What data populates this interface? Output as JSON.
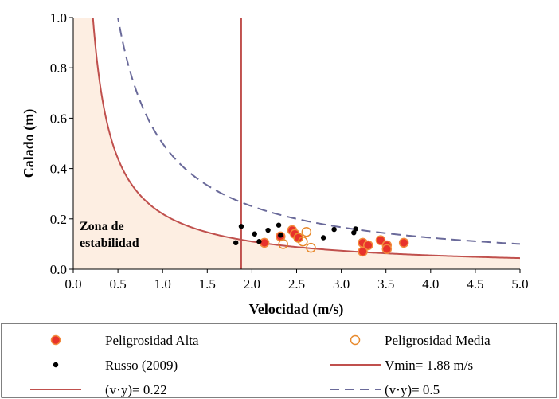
{
  "chart_data": {
    "type": "scatter",
    "xlabel": "Velocidad  (m/s)",
    "ylabel": "Calado (m)",
    "xlim": [
      0.0,
      5.0
    ],
    "ylim": [
      0.0,
      1.0
    ],
    "xticks": [
      "0.0",
      "0.5",
      "1.0",
      "1.5",
      "2.0",
      "2.5",
      "3.0",
      "3.5",
      "4.0",
      "4.5",
      "5.0"
    ],
    "yticks": [
      "0.0",
      "0.2",
      "0.4",
      "0.6",
      "0.8",
      "1.0"
    ],
    "xtick_values": [
      0,
      0.5,
      1,
      1.5,
      2,
      2.5,
      3,
      3.5,
      4,
      4.5,
      5
    ],
    "ytick_values": [
      0,
      0.2,
      0.4,
      0.6,
      0.8,
      1.0
    ],
    "grid": false,
    "legend_position": "bottom",
    "annotation": [
      "Zona de",
      "estabilidad"
    ],
    "colors": {
      "curve_022": "#c0504d",
      "curve_05": "#6a6a9a",
      "vmin": "#c0504d",
      "alta": "#e8322b",
      "alta_edge": "#f28a3c",
      "media": "#e8892b",
      "russo": "#000000",
      "zone_fill": "#fdeee2"
    },
    "curves": [
      {
        "name": "(v·y)= 0.22",
        "product": 0.22,
        "style": "solid"
      },
      {
        "name": "(v·y)= 0.5",
        "product": 0.5,
        "style": "dashed"
      }
    ],
    "vline": {
      "name": "Vmin= 1.88 m/s",
      "x": 1.88
    },
    "series": [
      {
        "name": "Peligrosidad Alta",
        "marker": "filled-circle",
        "points": [
          [
            2.14,
            0.105
          ],
          [
            2.32,
            0.13
          ],
          [
            2.45,
            0.155
          ],
          [
            2.48,
            0.14
          ],
          [
            2.52,
            0.125
          ],
          [
            3.24,
            0.105
          ],
          [
            3.3,
            0.095
          ],
          [
            3.44,
            0.115
          ],
          [
            3.51,
            0.095
          ],
          [
            3.24,
            0.07
          ],
          [
            3.51,
            0.08
          ],
          [
            3.7,
            0.105
          ]
        ]
      },
      {
        "name": "Peligrosidad Media",
        "marker": "open-circle",
        "points": [
          [
            2.35,
            0.1
          ],
          [
            2.52,
            0.125
          ],
          [
            2.57,
            0.11
          ],
          [
            2.61,
            0.148
          ],
          [
            2.66,
            0.085
          ]
        ]
      },
      {
        "name": "Russo (2009)",
        "marker": "dot",
        "points": [
          [
            1.82,
            0.105
          ],
          [
            1.88,
            0.17
          ],
          [
            2.03,
            0.14
          ],
          [
            2.08,
            0.11
          ],
          [
            2.18,
            0.155
          ],
          [
            2.3,
            0.175
          ],
          [
            2.32,
            0.135
          ],
          [
            2.8,
            0.125
          ],
          [
            2.92,
            0.158
          ],
          [
            3.14,
            0.145
          ],
          [
            3.16,
            0.16
          ]
        ]
      }
    ],
    "legend": [
      {
        "label": "Peligrosidad Alta",
        "symbol": "alta"
      },
      {
        "label": "Peligrosidad Media",
        "symbol": "media"
      },
      {
        "label": "Russo (2009)",
        "symbol": "russo"
      },
      {
        "label": "Vmin= 1.88 m/s",
        "symbol": "vmin"
      },
      {
        "label": "(v·y)= 0.22",
        "symbol": "curve_022"
      },
      {
        "label": "(v·y)= 0.5",
        "symbol": "curve_05"
      }
    ]
  }
}
